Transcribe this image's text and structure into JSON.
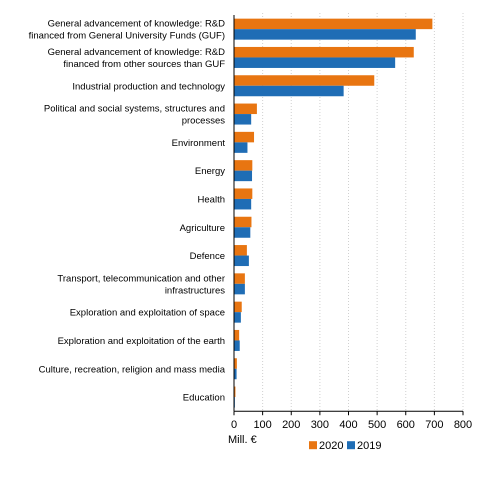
{
  "chart_data": {
    "type": "bar",
    "orientation": "horizontal",
    "categories": [
      "General advancement of knowledge: R&D\nfinanced from General University Funds (GUF)",
      "General advancement of knowledge: R&D\nfinanced from other sources than GUF",
      "Industrial production and technology",
      "Political and social systems, structures and\nprocesses",
      "Environment",
      "Energy",
      "Health",
      "Agriculture",
      "Defence",
      "Transport, telecommunication and other\ninfrastructures",
      "Exploration and exploitation of space",
      "Exploration and exploitation of the earth",
      "Culture, recreation, religion and mass media",
      "Education"
    ],
    "series": [
      {
        "name": "2020",
        "color": "#e87511",
        "values": [
          693,
          628,
          490,
          80,
          70,
          64,
          64,
          61,
          45,
          38,
          27,
          18,
          10,
          5
        ]
      },
      {
        "name": "2019",
        "color": "#1f6db5",
        "values": [
          635,
          563,
          383,
          60,
          47,
          63,
          60,
          57,
          52,
          38,
          24,
          20,
          9,
          3
        ]
      }
    ],
    "xlim": [
      0,
      800
    ],
    "xticks": [
      "0",
      "100",
      "200",
      "300",
      "400",
      "500",
      "600",
      "700",
      "800"
    ],
    "xlabel": "Mill. €",
    "legend_position": "bottom",
    "grid": "vertical"
  }
}
